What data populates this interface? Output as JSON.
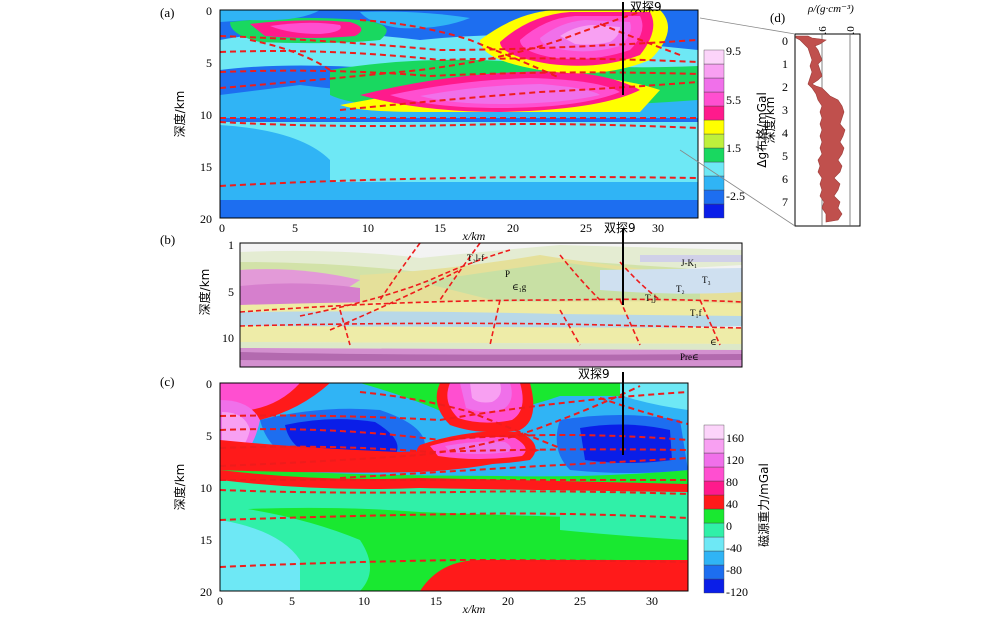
{
  "panel_a": {
    "tag": "(a)",
    "y_label": "深度/km",
    "x_label": "x/km",
    "y_ticks": [
      "0",
      "5",
      "10",
      "15",
      "20"
    ],
    "x_ticks": [
      "0",
      "5",
      "10",
      "15",
      "20",
      "25",
      "30"
    ],
    "well": "双探9",
    "colorbar_label": "Δg布格/mGal",
    "colorbar_ticks": [
      "9.5",
      "5.5",
      "1.5",
      "-2.5"
    ],
    "colorbar_colors": [
      "#0a1ee8",
      "#1d6ef0",
      "#30b4f5",
      "#6ee8f5",
      "#19d860",
      "#bff03c",
      "#ffff00",
      "#ff1a8c",
      "#ff4fd0",
      "#f070ea",
      "#f8a0f2",
      "#fcd4fa"
    ]
  },
  "panel_b": {
    "tag": "(b)",
    "y_label": "深度/km",
    "y_ticks": [
      "1",
      "5",
      "10"
    ],
    "well": "双探9",
    "strata": [
      "T₂l-f",
      "P",
      "∈₁g",
      "J-K₁",
      "T₃",
      "T₂",
      "T₁j",
      "T₁f",
      "∈",
      "Pre∈"
    ]
  },
  "panel_c": {
    "tag": "(c)",
    "y_label": "深度/km",
    "x_label": "x/km",
    "y_ticks": [
      "0",
      "5",
      "10",
      "15",
      "20"
    ],
    "x_ticks": [
      "0",
      "5",
      "10",
      "15",
      "20",
      "25",
      "30"
    ],
    "well": "双探9",
    "colorbar_label": "磁源重力/mGal",
    "colorbar_ticks": [
      "160",
      "120",
      "80",
      "40",
      "0",
      "-40",
      "-80",
      "-120"
    ],
    "colorbar_colors": [
      "#0a1ee8",
      "#1d6ef0",
      "#30b4f5",
      "#6ee8f5",
      "#30f0a8",
      "#19e830",
      "#ff1a1a",
      "#ff1a8c",
      "#ff4fd0",
      "#f070ea",
      "#f8a0f2",
      "#fcd4fa"
    ]
  },
  "panel_d": {
    "tag": "(d)",
    "x_label": "ρ/(g·cm⁻³)",
    "x_ticks": [
      "2.6",
      "3.0"
    ],
    "y_label": "深度/km",
    "y_ticks": [
      "0",
      "1",
      "2",
      "3",
      "4",
      "5",
      "6",
      "7"
    ]
  }
}
